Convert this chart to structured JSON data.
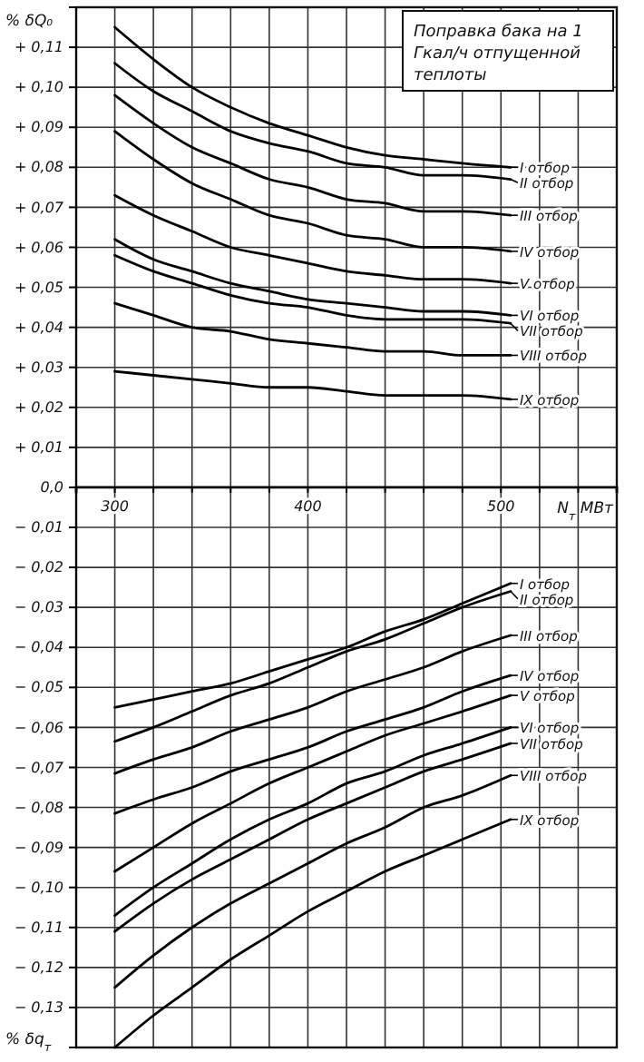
{
  "chart_data": {
    "type": "line",
    "title": "Поправка бака на 1 Гкал/ч отпущенной теплоты",
    "xlabel": "N$_{т}$ МВт",
    "ylabel": "% δQ₀",
    "annotations": [
      "% δq$_{т}$"
    ],
    "x": [
      300,
      320,
      340,
      360,
      380,
      400,
      420,
      440,
      460,
      480,
      505
    ],
    "series": [
      {
        "name": "I отбор",
        "color": "#000000",
        "values": [
          0.115,
          0.107,
          0.1,
          0.095,
          0.091,
          0.088,
          0.085,
          0.083,
          0.082,
          0.081,
          0.08
        ]
      },
      {
        "name": "II отбор",
        "color": "#000000",
        "values": [
          0.106,
          0.099,
          0.094,
          0.089,
          0.086,
          0.084,
          0.081,
          0.08,
          0.078,
          0.078,
          0.077
        ]
      },
      {
        "name": "III отбор",
        "color": "#000000",
        "values": [
          0.098,
          0.091,
          0.085,
          0.081,
          0.077,
          0.075,
          0.072,
          0.071,
          0.069,
          0.069,
          0.068
        ]
      },
      {
        "name": "IV отбор",
        "color": "#000000",
        "values": [
          0.089,
          0.082,
          0.076,
          0.072,
          0.068,
          0.066,
          0.063,
          0.062,
          0.06,
          0.06,
          0.059
        ]
      },
      {
        "name": "V отбор",
        "color": "#000000",
        "values": [
          0.073,
          0.068,
          0.064,
          0.06,
          0.058,
          0.056,
          0.054,
          0.053,
          0.052,
          0.052,
          0.051
        ]
      },
      {
        "name": "VI отбор",
        "color": "#000000",
        "values": [
          0.062,
          0.057,
          0.054,
          0.051,
          0.049,
          0.047,
          0.046,
          0.045,
          0.044,
          0.044,
          0.043
        ]
      },
      {
        "name": "VII отбор",
        "color": "#000000",
        "values": [
          0.058,
          0.054,
          0.051,
          0.048,
          0.046,
          0.045,
          0.043,
          0.042,
          0.042,
          0.042,
          0.041
        ]
      },
      {
        "name": "VIII отбор",
        "color": "#000000",
        "values": [
          0.046,
          0.043,
          0.04,
          0.039,
          0.037,
          0.036,
          0.035,
          0.034,
          0.034,
          0.033,
          0.033
        ]
      },
      {
        "name": "IX отбор",
        "color": "#000000",
        "values": [
          0.029,
          0.028,
          0.027,
          0.026,
          0.025,
          0.025,
          0.024,
          0.023,
          0.023,
          0.023,
          0.022
        ]
      },
      {
        "name": "I отбор",
        "color": "#000000",
        "values": [
          -0.055,
          -0.053,
          -0.051,
          -0.049,
          -0.046,
          -0.043,
          -0.04,
          -0.036,
          -0.033,
          -0.029,
          -0.024
        ]
      },
      {
        "name": "II отбор",
        "color": "#000000",
        "values": [
          -0.0635,
          -0.06,
          -0.056,
          -0.052,
          -0.049,
          -0.045,
          -0.041,
          -0.038,
          -0.034,
          -0.03,
          -0.026
        ]
      },
      {
        "name": "III отбор",
        "color": "#000000",
        "values": [
          -0.0715,
          -0.068,
          -0.065,
          -0.061,
          -0.058,
          -0.055,
          -0.051,
          -0.048,
          -0.045,
          -0.041,
          -0.037
        ]
      },
      {
        "name": "IV отбор",
        "color": "#000000",
        "values": [
          -0.0815,
          -0.078,
          -0.075,
          -0.071,
          -0.068,
          -0.065,
          -0.061,
          -0.058,
          -0.055,
          -0.051,
          -0.047
        ]
      },
      {
        "name": "V отбор",
        "color": "#000000",
        "values": [
          -0.096,
          -0.09,
          -0.084,
          -0.079,
          -0.074,
          -0.07,
          -0.066,
          -0.062,
          -0.059,
          -0.056,
          -0.052
        ]
      },
      {
        "name": "VI отбор",
        "color": "#000000",
        "values": [
          -0.107,
          -0.1,
          -0.094,
          -0.088,
          -0.083,
          -0.079,
          -0.074,
          -0.071,
          -0.067,
          -0.064,
          -0.06
        ]
      },
      {
        "name": "VII отбор",
        "color": "#000000",
        "values": [
          -0.111,
          -0.104,
          -0.098,
          -0.093,
          -0.088,
          -0.083,
          -0.079,
          -0.075,
          -0.071,
          -0.068,
          -0.064
        ]
      },
      {
        "name": "VIII отбор",
        "color": "#000000",
        "values": [
          -0.125,
          -0.117,
          -0.11,
          -0.104,
          -0.099,
          -0.094,
          -0.089,
          -0.085,
          -0.08,
          -0.077,
          -0.072
        ]
      },
      {
        "name": "IX отбор",
        "color": "#000000",
        "values": [
          -0.14,
          -0.132,
          -0.125,
          -0.118,
          -0.112,
          -0.106,
          -0.101,
          -0.096,
          -0.092,
          -0.088,
          -0.083
        ]
      }
    ],
    "xlim": [
      280,
      560
    ],
    "ylim": [
      -0.14,
      0.12
    ],
    "xticks": [
      {
        "value": 280,
        "label": null
      },
      300,
      {
        "value": 320,
        "label": null
      },
      {
        "value": 340,
        "label": null
      },
      {
        "value": 360,
        "label": null
      },
      {
        "value": 380,
        "label": null
      },
      400,
      {
        "value": 420,
        "label": null
      },
      {
        "value": 440,
        "label": null
      },
      {
        "value": 460,
        "label": null
      },
      {
        "value": 480,
        "label": null
      },
      500,
      {
        "value": 520,
        "label": null
      },
      {
        "value": 540,
        "label": null
      },
      {
        "value": 560,
        "label": null
      }
    ],
    "yticks": [
      {
        "value": 0.11,
        "label": "+ 0,11"
      },
      {
        "value": 0.1,
        "label": "+ 0,10"
      },
      {
        "value": 0.09,
        "label": "+ 0,09"
      },
      {
        "value": 0.08,
        "label": "+ 0,08"
      },
      {
        "value": 0.07,
        "label": "+ 0,07"
      },
      {
        "value": 0.06,
        "label": "+ 0,06"
      },
      {
        "value": 0.05,
        "label": "+ 0,05"
      },
      {
        "value": 0.04,
        "label": "+ 0,04"
      },
      {
        "value": 0.03,
        "label": "+ 0,03"
      },
      {
        "value": 0.02,
        "label": "+ 0,02"
      },
      {
        "value": 0.01,
        "label": "+ 0,01"
      },
      {
        "value": 0,
        "label": "0,0"
      },
      {
        "value": -0.01,
        "label": "− 0,01"
      },
      {
        "value": -0.02,
        "label": "− 0,02"
      },
      {
        "value": -0.03,
        "label": "− 0,03"
      },
      {
        "value": -0.04,
        "label": "− 0,04"
      },
      {
        "value": -0.05,
        "label": "− 0,05"
      },
      {
        "value": -0.06,
        "label": "− 0,06"
      },
      {
        "value": -0.07,
        "label": "− 0,07"
      },
      {
        "value": -0.08,
        "label": "− 0,08"
      },
      {
        "value": -0.09,
        "label": "− 0,09"
      },
      {
        "value": -0.1,
        "label": "− 0,10"
      },
      {
        "value": -0.11,
        "label": "− 0,11"
      },
      {
        "value": -0.12,
        "label": "− 0,12"
      },
      {
        "value": -0.13,
        "label": "− 0,13"
      }
    ],
    "grid": true,
    "legend": "right"
  }
}
